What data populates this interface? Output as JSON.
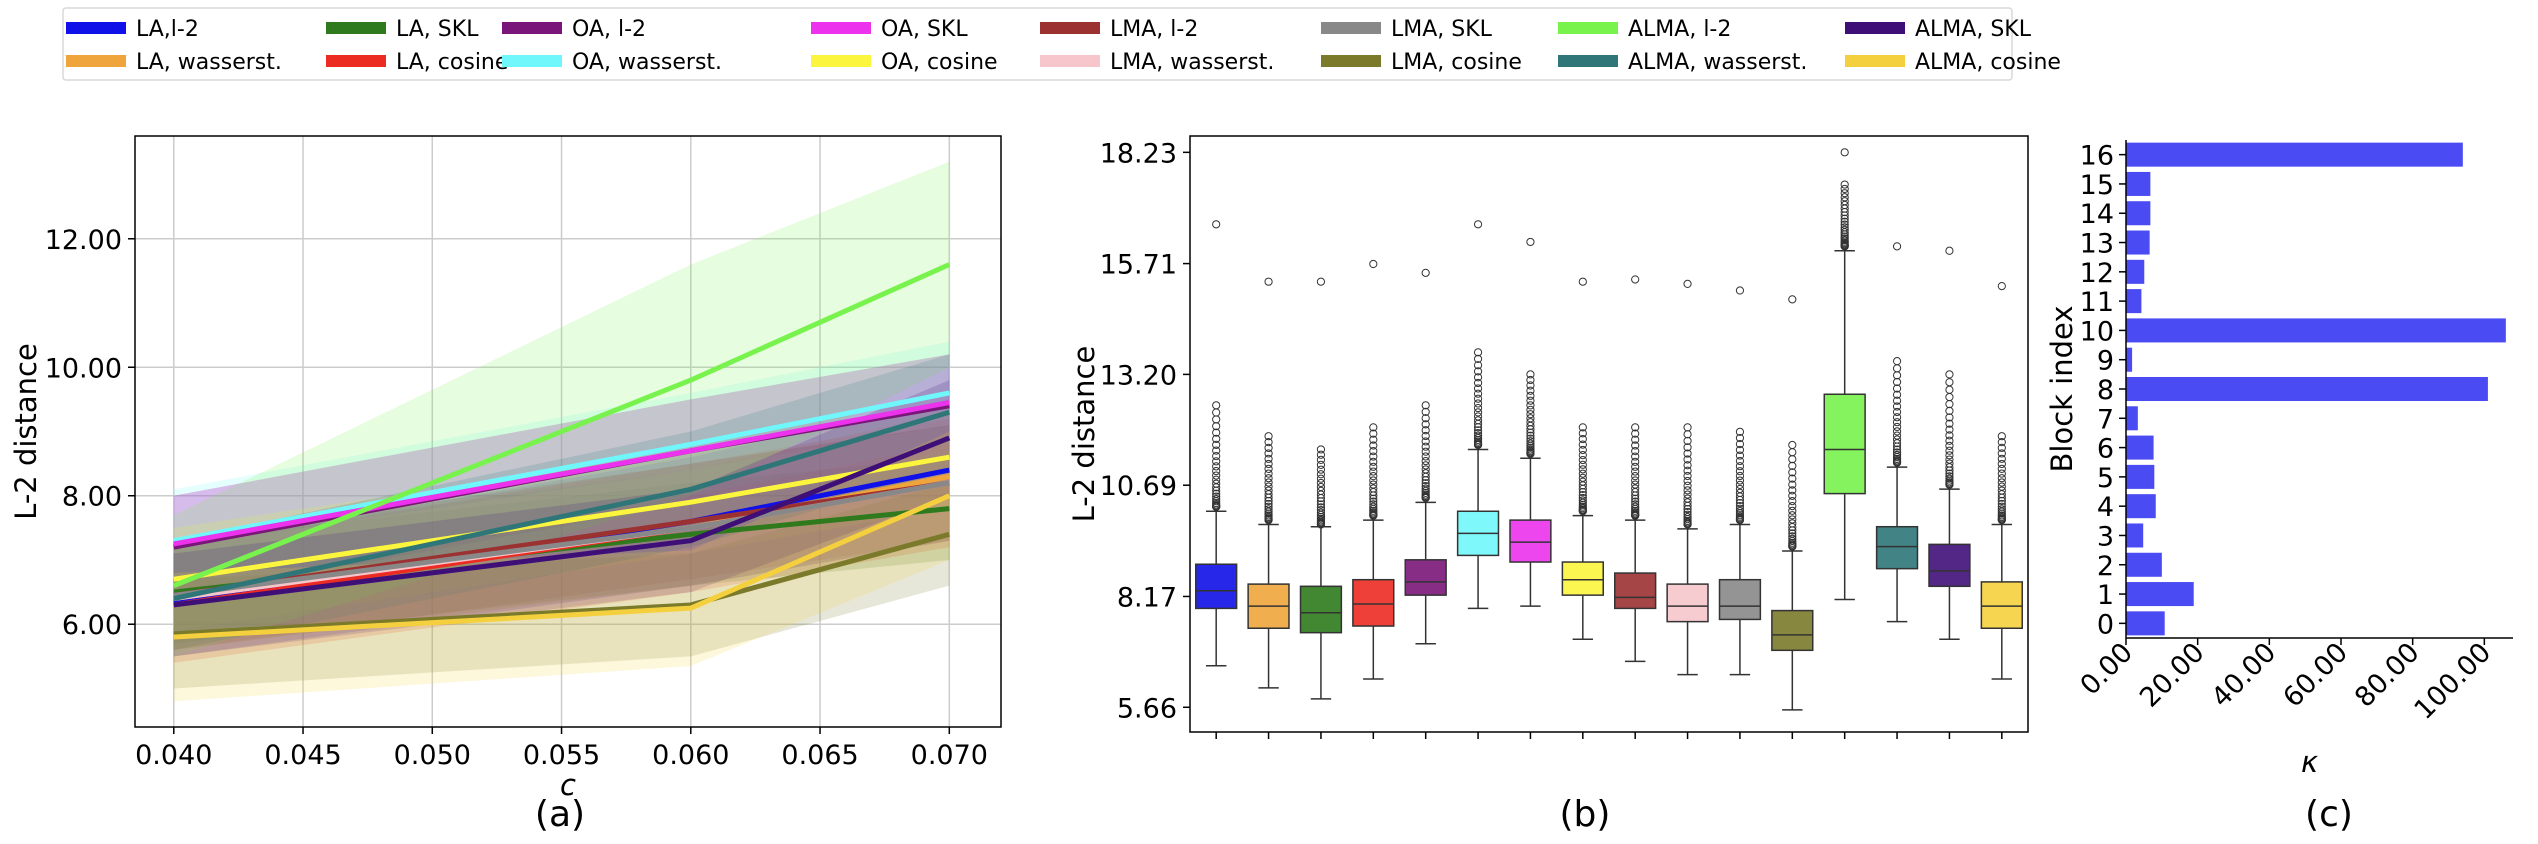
{
  "legend": {
    "position": "top",
    "entries": [
      {
        "label": "LA,l-2",
        "color": "#1010e8"
      },
      {
        "label": "LA, wasserst.",
        "color": "#f0a53c"
      },
      {
        "label": "LA, SKL",
        "color": "#2e7a1c"
      },
      {
        "label": "LA, cosine",
        "color": "#ec2b23"
      },
      {
        "label": "OA, l-2",
        "color": "#7a1679"
      },
      {
        "label": "OA, wasserst.",
        "color": "#70f7fb"
      },
      {
        "label": "OA, SKL",
        "color": "#ec32ec"
      },
      {
        "label": "OA, cosine",
        "color": "#fcf53e"
      },
      {
        "label": "LMA, l-2",
        "color": "#9c3131"
      },
      {
        "label": "LMA, wasserst.",
        "color": "#f6c6cc"
      },
      {
        "label": "LMA, SKL",
        "color": "#888888"
      },
      {
        "label": "LMA, cosine",
        "color": "#7a7a2a"
      },
      {
        "label": "ALMA, l-2",
        "color": "#78f24d"
      },
      {
        "label": "ALMA, wasserst.",
        "color": "#2e7678"
      },
      {
        "label": "ALMA, SKL",
        "color": "#3f0f78"
      },
      {
        "label": "ALMA, cosine",
        "color": "#f5d03e"
      }
    ]
  },
  "chart_data": [
    {
      "panel": "(a)",
      "type": "line",
      "xlabel": "c",
      "ylabel": "L-2 distance",
      "xlim": [
        0.0385,
        0.072
      ],
      "ylim": [
        4.4,
        13.6
      ],
      "grid": true,
      "x": [
        0.04,
        0.06,
        0.07
      ],
      "x_tick_labels": [
        "0.040",
        "0.045",
        "0.050",
        "0.055",
        "0.060",
        "0.065",
        "0.070"
      ],
      "x_ticks": [
        0.04,
        0.045,
        0.05,
        0.055,
        0.06,
        0.065,
        0.07
      ],
      "y_tick_labels": [
        "6.00",
        "8.00",
        "10.00",
        "12.00"
      ],
      "y_ticks": [
        6,
        8,
        10,
        12
      ],
      "series": [
        {
          "name": "LA,l-2",
          "values": [
            6.35,
            7.6,
            8.4
          ],
          "band_low": [
            5.5,
            6.6,
            7.3
          ],
          "band_high": [
            7.2,
            8.6,
            9.5
          ]
        },
        {
          "name": "LA, wasserst.",
          "values": [
            6.4,
            7.5,
            8.3
          ],
          "band_low": [
            5.6,
            6.6,
            7.3
          ],
          "band_high": [
            7.2,
            8.4,
            9.3
          ]
        },
        {
          "name": "LA, SKL",
          "values": [
            6.5,
            7.4,
            7.8
          ],
          "band_low": [
            5.7,
            6.6,
            7.0
          ],
          "band_high": [
            7.3,
            8.2,
            8.6
          ]
        },
        {
          "name": "LA, cosine",
          "values": [
            6.3,
            7.5,
            8.2
          ],
          "band_low": [
            5.4,
            6.5,
            7.2
          ],
          "band_high": [
            7.2,
            8.5,
            9.2
          ]
        },
        {
          "name": "OA, l-2",
          "values": [
            7.2,
            8.7,
            9.4
          ],
          "band_low": [
            6.4,
            7.9,
            8.6
          ],
          "band_high": [
            8.0,
            9.5,
            10.2
          ]
        },
        {
          "name": "OA, wasserst.",
          "values": [
            7.3,
            8.8,
            9.6
          ],
          "band_low": [
            6.5,
            8.0,
            8.8
          ],
          "band_high": [
            8.1,
            9.6,
            10.4
          ]
        },
        {
          "name": "OA, SKL",
          "values": [
            7.25,
            8.7,
            9.45
          ],
          "band_low": [
            6.5,
            7.9,
            8.7
          ],
          "band_high": [
            8.0,
            9.5,
            10.2
          ]
        },
        {
          "name": "OA, cosine",
          "values": [
            6.7,
            7.9,
            8.6
          ],
          "band_low": [
            5.9,
            7.1,
            7.8
          ],
          "band_high": [
            7.5,
            8.7,
            9.4
          ]
        },
        {
          "name": "LMA, l-2",
          "values": [
            6.45,
            7.6,
            8.2
          ],
          "band_low": [
            5.6,
            6.7,
            7.3
          ],
          "band_high": [
            7.3,
            8.5,
            9.1
          ]
        },
        {
          "name": "LMA, wasserst.",
          "values": [
            6.4,
            7.5,
            8.2
          ],
          "band_low": [
            5.6,
            6.6,
            7.3
          ],
          "band_high": [
            7.2,
            8.4,
            9.1
          ]
        },
        {
          "name": "LMA, SKL",
          "values": [
            6.45,
            7.5,
            8.2
          ],
          "band_low": [
            5.6,
            6.6,
            7.3
          ],
          "band_high": [
            7.3,
            8.4,
            9.1
          ]
        },
        {
          "name": "LMA, cosine",
          "values": [
            5.85,
            6.3,
            7.4
          ],
          "band_low": [
            5.0,
            5.5,
            6.6
          ],
          "band_high": [
            6.7,
            7.1,
            8.2
          ]
        },
        {
          "name": "ALMA, l-2",
          "values": [
            6.6,
            9.8,
            11.6
          ],
          "band_low": [
            5.5,
            8.0,
            10.0
          ],
          "band_high": [
            7.7,
            11.6,
            13.2
          ]
        },
        {
          "name": "ALMA, wasserst.",
          "values": [
            6.4,
            8.1,
            9.3
          ],
          "band_low": [
            5.6,
            7.2,
            8.4
          ],
          "band_high": [
            7.3,
            9.0,
            10.2
          ]
        },
        {
          "name": "ALMA, SKL",
          "values": [
            6.3,
            7.3,
            8.9
          ],
          "band_low": [
            5.5,
            6.5,
            8.0
          ],
          "band_high": [
            7.1,
            8.1,
            9.8
          ]
        },
        {
          "name": "ALMA, cosine",
          "values": [
            5.8,
            6.25,
            8.0
          ],
          "band_low": [
            4.8,
            5.35,
            7.0
          ],
          "band_high": [
            6.8,
            7.15,
            9.0
          ]
        }
      ]
    },
    {
      "panel": "(b)",
      "type": "box",
      "ylabel": "L-2 distance",
      "ylim": [
        5.1,
        18.6
      ],
      "y_ticks": [
        5.66,
        8.17,
        10.69,
        13.2,
        15.71,
        18.23
      ],
      "y_tick_labels": [
        "5.66",
        "8.17",
        "10.69",
        "13.20",
        "15.71",
        "18.23"
      ],
      "boxes": [
        {
          "name": "LA,l-2",
          "q1": 7.9,
          "median": 8.3,
          "q3": 8.9,
          "whisker_low": 6.6,
          "whisker_high": 10.1,
          "outlier_min": 10.2,
          "outlier_max": 12.5,
          "far_outliers": [
            16.6
          ]
        },
        {
          "name": "LA, wasserst.",
          "q1": 7.45,
          "median": 7.95,
          "q3": 8.45,
          "whisker_low": 6.1,
          "whisker_high": 9.8,
          "outlier_min": 9.9,
          "outlier_max": 11.8,
          "far_outliers": [
            15.3
          ]
        },
        {
          "name": "LA, SKL",
          "q1": 7.35,
          "median": 7.8,
          "q3": 8.4,
          "whisker_low": 5.85,
          "whisker_high": 9.75,
          "outlier_min": 9.8,
          "outlier_max": 11.5,
          "far_outliers": [
            15.3
          ]
        },
        {
          "name": "LA, cosine",
          "q1": 7.5,
          "median": 8.0,
          "q3": 8.55,
          "whisker_low": 6.3,
          "whisker_high": 9.9,
          "outlier_min": 10.0,
          "outlier_max": 12.0,
          "far_outliers": [
            15.7
          ]
        },
        {
          "name": "OA, l-2",
          "q1": 8.2,
          "median": 8.5,
          "q3": 9.0,
          "whisker_low": 7.1,
          "whisker_high": 10.3,
          "outlier_min": 10.4,
          "outlier_max": 12.5,
          "far_outliers": [
            15.5
          ]
        },
        {
          "name": "OA, wasserst.",
          "q1": 9.1,
          "median": 9.6,
          "q3": 10.1,
          "whisker_low": 7.9,
          "whisker_high": 11.5,
          "outlier_min": 11.6,
          "outlier_max": 13.7,
          "far_outliers": [
            16.6
          ]
        },
        {
          "name": "OA, SKL",
          "q1": 8.95,
          "median": 9.4,
          "q3": 9.9,
          "whisker_low": 7.95,
          "whisker_high": 11.3,
          "outlier_min": 11.4,
          "outlier_max": 13.2,
          "far_outliers": [
            16.2
          ]
        },
        {
          "name": "OA, cosine",
          "q1": 8.2,
          "median": 8.55,
          "q3": 8.95,
          "whisker_low": 7.2,
          "whisker_high": 10.0,
          "outlier_min": 10.1,
          "outlier_max": 12.0,
          "far_outliers": [
            15.3
          ]
        },
        {
          "name": "LMA, l-2",
          "q1": 7.9,
          "median": 8.15,
          "q3": 8.7,
          "whisker_low": 6.7,
          "whisker_high": 9.9,
          "outlier_min": 10.0,
          "outlier_max": 12.0,
          "far_outliers": [
            15.35
          ]
        },
        {
          "name": "LMA, wasserst.",
          "q1": 7.6,
          "median": 7.95,
          "q3": 8.45,
          "whisker_low": 6.4,
          "whisker_high": 9.7,
          "outlier_min": 9.8,
          "outlier_max": 12.0,
          "far_outliers": [
            15.25
          ]
        },
        {
          "name": "LMA, SKL",
          "q1": 7.65,
          "median": 7.95,
          "q3": 8.55,
          "whisker_low": 6.4,
          "whisker_high": 9.8,
          "outlier_min": 9.9,
          "outlier_max": 11.9,
          "far_outliers": [
            15.1
          ]
        },
        {
          "name": "LMA, cosine",
          "q1": 6.95,
          "median": 7.3,
          "q3": 7.85,
          "whisker_low": 5.6,
          "whisker_high": 9.2,
          "outlier_min": 9.3,
          "outlier_max": 11.6,
          "far_outliers": [
            14.9
          ]
        },
        {
          "name": "ALMA, l-2",
          "q1": 10.5,
          "median": 11.5,
          "q3": 12.75,
          "whisker_low": 8.1,
          "whisker_high": 16.0,
          "outlier_min": 16.1,
          "outlier_max": 17.5,
          "far_outliers": [
            18.23
          ]
        },
        {
          "name": "ALMA, wasserst.",
          "q1": 8.8,
          "median": 9.3,
          "q3": 9.75,
          "whisker_low": 7.6,
          "whisker_high": 11.1,
          "outlier_min": 11.2,
          "outlier_max": 13.5,
          "far_outliers": [
            16.1
          ]
        },
        {
          "name": "ALMA, SKL",
          "q1": 8.4,
          "median": 8.75,
          "q3": 9.35,
          "whisker_low": 7.2,
          "whisker_high": 10.6,
          "outlier_min": 10.7,
          "outlier_max": 13.2,
          "far_outliers": [
            16.0
          ]
        },
        {
          "name": "ALMA, cosine",
          "q1": 7.45,
          "median": 7.95,
          "q3": 8.5,
          "whisker_low": 6.3,
          "whisker_high": 9.8,
          "outlier_min": 9.9,
          "outlier_max": 11.8,
          "far_outliers": [
            15.2
          ]
        }
      ]
    },
    {
      "panel": "(c)",
      "type": "bar",
      "orientation": "horizontal",
      "xlabel": "κ",
      "ylabel": "Block index",
      "xlim": [
        0,
        108
      ],
      "x_ticks": [
        0,
        20,
        40,
        60,
        80,
        100
      ],
      "x_tick_labels": [
        "0.00",
        "20.00",
        "40.00",
        "60.00",
        "80.00",
        "100.00"
      ],
      "color": "#4b4bf4",
      "categories": [
        "0",
        "1",
        "2",
        "3",
        "4",
        "5",
        "6",
        "7",
        "8",
        "9",
        "10",
        "11",
        "12",
        "13",
        "14",
        "15",
        "16"
      ],
      "values": [
        10.8,
        18.9,
        10.0,
        4.8,
        8.3,
        7.9,
        7.7,
        3.3,
        101.0,
        1.7,
        106.0,
        4.3,
        5.1,
        6.6,
        6.8,
        6.8,
        94.0
      ]
    }
  ],
  "panel_labels": [
    "(a)",
    "(b)",
    "(c)"
  ]
}
